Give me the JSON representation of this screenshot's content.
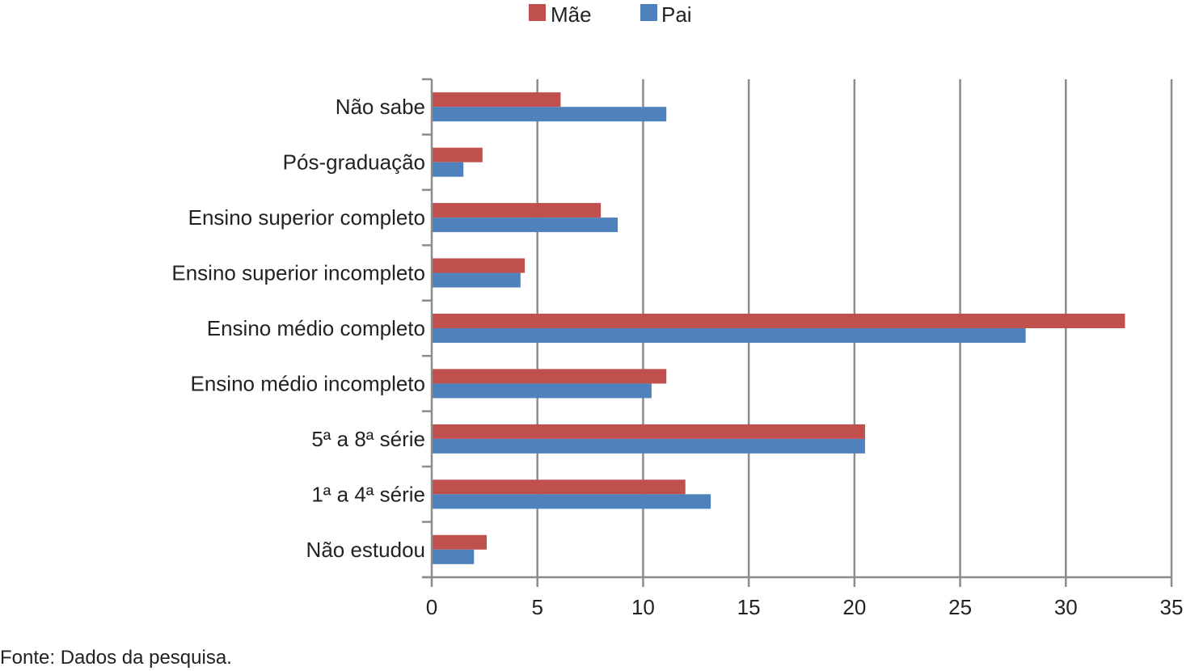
{
  "chart_data": {
    "type": "bar",
    "orientation": "horizontal",
    "categories": [
      "Não sabe",
      "Pós-graduação",
      "Ensino superior completo",
      "Ensino superior incompleto",
      "Ensino médio completo",
      "Ensino médio incompleto",
      "5ª a 8ª série",
      "1ª a 4ª série",
      "Não estudou"
    ],
    "series": [
      {
        "name": "Mãe",
        "color": "#c0504d",
        "values": [
          6.1,
          2.4,
          8.0,
          4.4,
          32.8,
          11.1,
          20.5,
          12.0,
          2.6
        ]
      },
      {
        "name": "Pai",
        "color": "#4f81bd",
        "values": [
          11.1,
          1.5,
          8.8,
          4.2,
          28.1,
          10.4,
          20.5,
          13.2,
          2.0
        ]
      }
    ],
    "xlim": [
      0,
      35
    ],
    "xticks": [
      0,
      5,
      10,
      15,
      20,
      25,
      30,
      35
    ],
    "grid": "vertical",
    "legend_position": "top"
  },
  "source_note": "Fonte: Dados da pesquisa."
}
